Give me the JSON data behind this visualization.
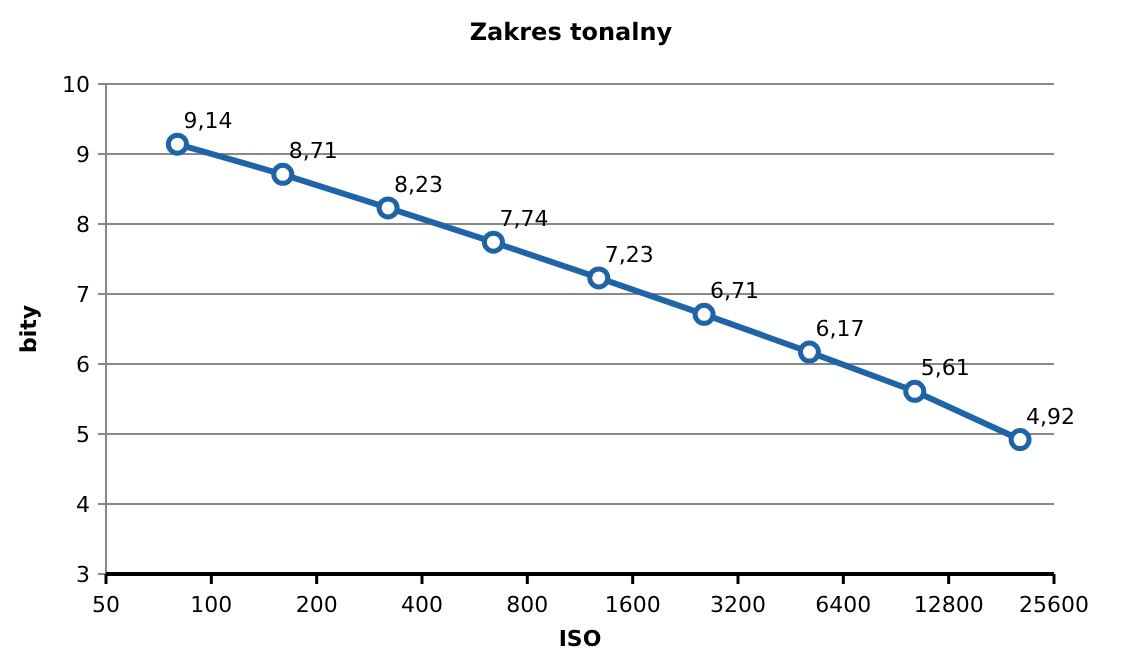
{
  "chart_data": {
    "type": "line",
    "title": "Zakres tonalny",
    "xlabel": "ISO",
    "ylabel": "bity",
    "log": "x",
    "x": [
      80,
      160,
      320,
      640,
      1280,
      2560,
      5120,
      10240,
      20480
    ],
    "series": [
      {
        "color": "#1f64a6",
        "values": [
          9.14,
          8.71,
          8.23,
          7.74,
          7.23,
          6.71,
          6.17,
          5.61,
          4.92
        ],
        "value_labels": [
          "9,14",
          "8,71",
          "8,23",
          "7,74",
          "7,23",
          "6,71",
          "6,17",
          "5,61",
          "4,92"
        ]
      }
    ],
    "xlim": [
      50,
      25600
    ],
    "xticks": [
      50,
      100,
      200,
      400,
      800,
      1600,
      3200,
      6400,
      12800,
      25600
    ],
    "ylim": [
      3,
      10
    ],
    "yticks": [
      3,
      4,
      5,
      6,
      7,
      8,
      9,
      10
    ],
    "grid": "y",
    "marker": "circle"
  }
}
